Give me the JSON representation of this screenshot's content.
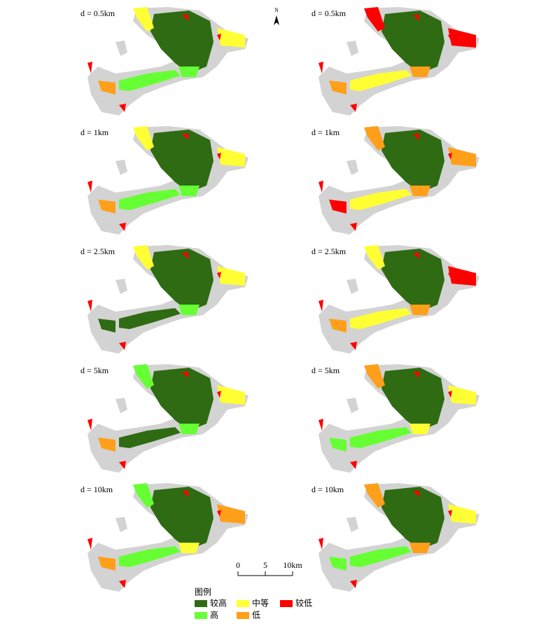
{
  "north": "N",
  "scale_bar": {
    "labels": [
      "0",
      "5",
      "10km"
    ]
  },
  "panels": [
    {
      "label": "d = 0.5km"
    },
    {
      "label": "d = 0.5km"
    },
    {
      "label": "d = 1km"
    },
    {
      "label": "d = 1km"
    },
    {
      "label": "d = 2.5km"
    },
    {
      "label": "d = 2.5km"
    },
    {
      "label": "d = 5km"
    },
    {
      "label": "d = 5km"
    },
    {
      "label": "d = 10km"
    },
    {
      "label": "d = 10km"
    }
  ],
  "legend": {
    "title": "图例",
    "items": [
      {
        "label": "较高",
        "color": "#2e6b12"
      },
      {
        "label": "高",
        "color": "#66ff33"
      },
      {
        "label": "中等",
        "color": "#ffff33"
      },
      {
        "label": "低",
        "color": "#ff9f1a"
      },
      {
        "label": "较低",
        "color": "#ff0000"
      }
    ]
  }
}
